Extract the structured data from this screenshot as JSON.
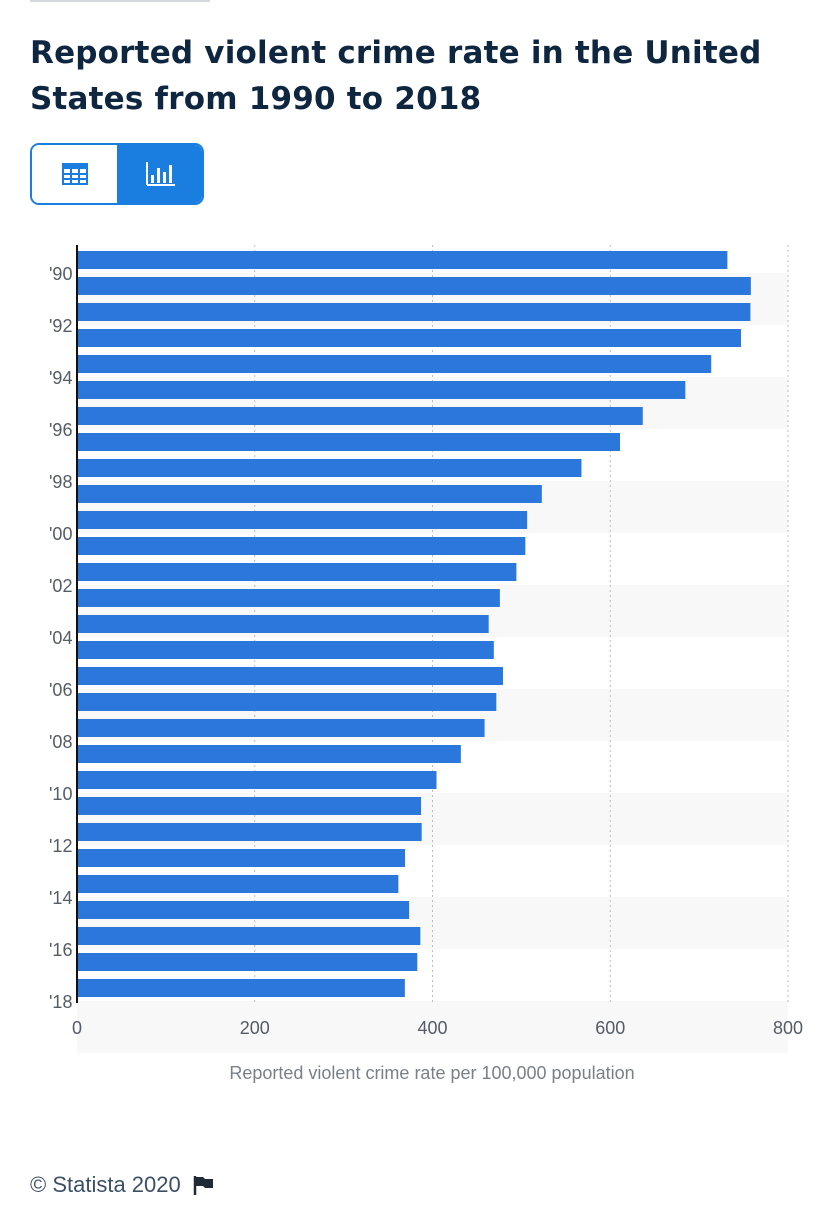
{
  "title": "Reported violent crime rate in the United States from 1990 to 2018",
  "view_toggle": {
    "table_icon": "table-icon",
    "chart_icon": "bar-chart-icon",
    "active": "chart"
  },
  "footer": {
    "copyright": "© Statista 2020",
    "flag_icon": "flag-icon"
  },
  "colors": {
    "bar": "#2b77dc",
    "title": "#0f2640",
    "accent": "#1a7ee0"
  },
  "chart_data": {
    "type": "bar",
    "orientation": "horizontal",
    "categories": [
      "'90",
      "'91",
      "'92",
      "'93",
      "'94",
      "'95",
      "'96",
      "'97",
      "'98",
      "'99",
      "'00",
      "'01",
      "'02",
      "'03",
      "'04",
      "'05",
      "'06",
      "'07",
      "'08",
      "'09",
      "'10",
      "'11",
      "'12",
      "'13",
      "'14",
      "'15",
      "'16",
      "'17",
      "'18"
    ],
    "category_labels_shown": [
      "'90",
      "'92",
      "'94",
      "'96",
      "'98",
      "'00",
      "'02",
      "'04",
      "'06",
      "'08",
      "'10",
      "'12",
      "'14",
      "'16",
      "'18"
    ],
    "values": [
      731.8,
      758.2,
      757.7,
      747.1,
      713.6,
      684.5,
      636.6,
      611.0,
      567.6,
      523.0,
      506.5,
      504.5,
      494.4,
      475.8,
      463.2,
      469.0,
      479.3,
      471.8,
      458.6,
      431.9,
      404.5,
      387.1,
      387.8,
      369.1,
      361.6,
      373.7,
      386.3,
      382.9,
      368.9
    ],
    "xlabel": "Reported violent crime rate per 100,000 population",
    "ylabel": "",
    "xlim": [
      0,
      800
    ],
    "xticks": [
      0,
      200,
      400,
      600,
      800
    ],
    "grid": true
  }
}
